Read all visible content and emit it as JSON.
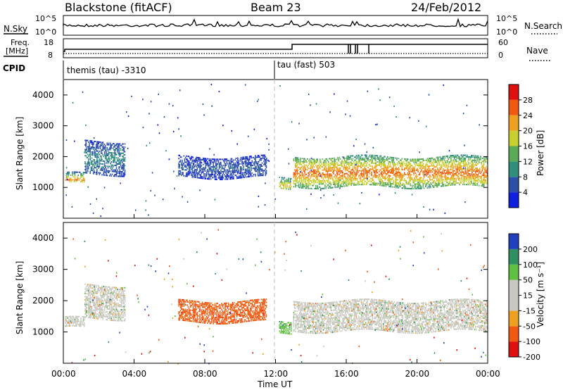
{
  "header": {
    "station": "Blackstone (fitACF)",
    "beam": "Beam 23",
    "date": "24/Feb/2012"
  },
  "noise_panel": {
    "left_label": "N.Sky",
    "right_label": "N.Search",
    "tick_top": "10^5",
    "tick_bottom": "10^0"
  },
  "freq_panel": {
    "label_top": "Freq.",
    "label_unit": "[MHz]",
    "left_ticks": [
      "18",
      "8"
    ],
    "right_ticks": [
      "60",
      "0"
    ],
    "right_label": "Nave"
  },
  "cpid_panel": {
    "label": "CPID",
    "segments": [
      {
        "name": "themis (tau)",
        "cpid": "-3310"
      },
      {
        "name": "tau (fast)",
        "cpid": "503"
      }
    ],
    "segment_text": [
      "themis (tau) -3310",
      "tau (fast) 503"
    ]
  },
  "time_axis": {
    "label": "Time UT",
    "ticks": [
      "00:00",
      "04:00",
      "08:00",
      "12:00",
      "16:00",
      "20:00",
      "00:00"
    ]
  },
  "chart_data": [
    {
      "type": "heatmap",
      "panel": "power",
      "xlabel": "Time UT",
      "ylabel": "Slant Range [km]",
      "yticks": [
        "1000",
        "2000",
        "3000",
        "4000"
      ],
      "ylim": [
        0,
        4500
      ],
      "xlim_hours": [
        0,
        24
      ],
      "colorbar": {
        "label": "Power [dB]",
        "ticks": [
          "4",
          "8",
          "12",
          "16",
          "20",
          "24",
          "28"
        ],
        "range": [
          0,
          32
        ]
      },
      "echo_bands": [
        {
          "t_start": 0.1,
          "t_end": 1.2,
          "range_start": 1100,
          "range_end": 1450,
          "level_db": 24
        },
        {
          "t_start": 1.2,
          "t_end": 3.5,
          "range_start": 1400,
          "range_end": 2500,
          "level_db": 10
        },
        {
          "t_start": 6.5,
          "t_end": 11.5,
          "range_start": 1300,
          "range_end": 2000,
          "level_db": 7
        },
        {
          "t_start": 12.2,
          "t_end": 12.9,
          "range_start": 900,
          "range_end": 1300,
          "level_db": 22
        },
        {
          "t_start": 13.0,
          "t_end": 24.0,
          "range_start": 1000,
          "range_end": 2000,
          "level_db": 26
        }
      ]
    },
    {
      "type": "heatmap",
      "panel": "velocity",
      "xlabel": "Time UT",
      "ylabel": "Slant Range [km]",
      "yticks": [
        "1000",
        "2000",
        "3000",
        "4000"
      ],
      "ylim": [
        0,
        4500
      ],
      "xlim_hours": [
        0,
        24
      ],
      "colorbar": {
        "label": "Velocity [m s⁻¹]",
        "ticks": [
          "200",
          "100",
          "50",
          "15",
          "-15",
          "-50",
          "-100",
          "-200"
        ],
        "range": [
          -250,
          250
        ]
      },
      "ground_scatter_color": "#c8c8c0",
      "echo_bands": [
        {
          "t_start": 0.1,
          "t_end": 1.2,
          "range_start": 1100,
          "range_end": 1450,
          "velocity": 0
        },
        {
          "t_start": 1.2,
          "t_end": 3.5,
          "range_start": 1400,
          "range_end": 2500,
          "velocity": 0
        },
        {
          "t_start": 6.5,
          "t_end": 11.5,
          "range_start": 1300,
          "range_end": 2000,
          "velocity": -60
        },
        {
          "t_start": 12.2,
          "t_end": 12.9,
          "range_start": 900,
          "range_end": 1300,
          "velocity": 40
        },
        {
          "t_start": 13.0,
          "t_end": 24.0,
          "range_start": 1000,
          "range_end": 2000,
          "velocity": 0
        }
      ]
    }
  ],
  "colors": {
    "power_scale": [
      "#1020e0",
      "#2c4fa8",
      "#2f8f7a",
      "#5aaa58",
      "#c8d030",
      "#f0a020",
      "#f05a10",
      "#e01010"
    ],
    "velocity_scale": [
      "#e01010",
      "#f05a10",
      "#f0a020",
      "#c8c8c0",
      "#c8c8c0",
      "#60c040",
      "#2f8f60",
      "#2040c0"
    ],
    "dashed_line": "#bfbfbf"
  }
}
